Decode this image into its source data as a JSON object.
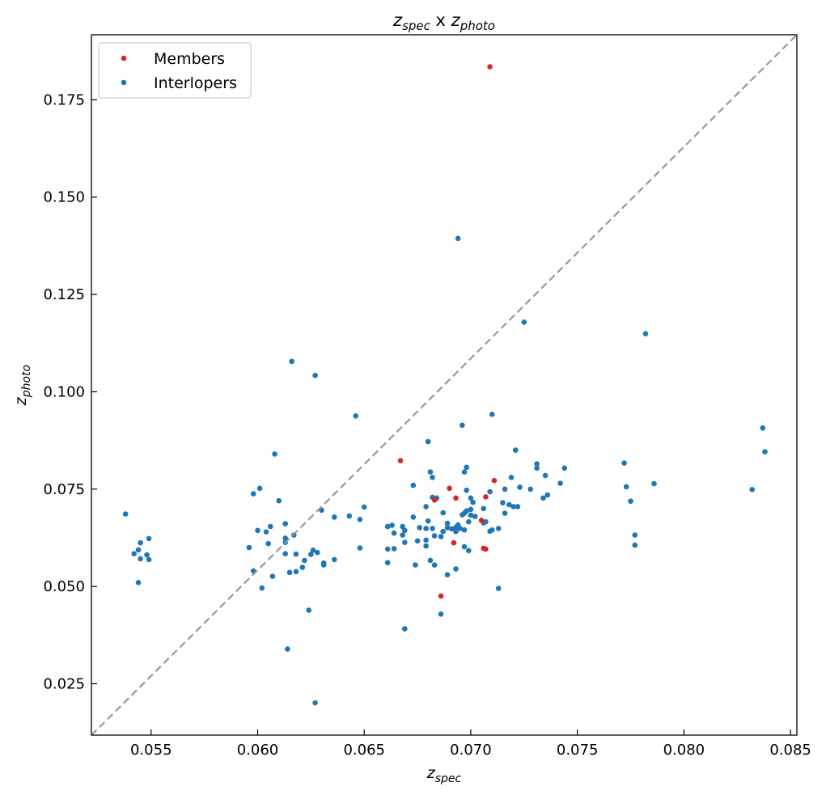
{
  "chart_data": {
    "type": "scatter",
    "title": {
      "base": "z",
      "sub1": "spec",
      "mid": " x ",
      "base2": "z",
      "sub2": "photo"
    },
    "xlabel": {
      "base": "z",
      "sub": "spec"
    },
    "ylabel": {
      "base": "z",
      "sub": "photo"
    },
    "xlim": [
      0.0522,
      0.0853
    ],
    "ylim": [
      0.0118,
      0.1917
    ],
    "xticks": [
      {
        "value": 0.055,
        "label": "0.055"
      },
      {
        "value": 0.06,
        "label": "0.060"
      },
      {
        "value": 0.065,
        "label": "0.065"
      },
      {
        "value": 0.07,
        "label": "0.070"
      },
      {
        "value": 0.075,
        "label": "0.075"
      },
      {
        "value": 0.08,
        "label": "0.080"
      },
      {
        "value": 0.085,
        "label": "0.085"
      }
    ],
    "yticks": [
      {
        "value": 0.025,
        "label": "0.025"
      },
      {
        "value": 0.05,
        "label": "0.050"
      },
      {
        "value": 0.075,
        "label": "0.075"
      },
      {
        "value": 0.1,
        "label": "0.100"
      },
      {
        "value": 0.125,
        "label": "0.125"
      },
      {
        "value": 0.15,
        "label": "0.150"
      },
      {
        "value": 0.175,
        "label": "0.175"
      }
    ],
    "reference_line": {
      "style": "dashed",
      "color": "#999999",
      "from": [
        0.0522,
        0.0118
      ],
      "to": [
        0.0853,
        0.1917
      ]
    },
    "grid": false,
    "legend": {
      "placement": "top-left",
      "entries": [
        "Members",
        "Interlopers"
      ]
    },
    "series": [
      {
        "name": "Members",
        "color": "#d62728",
        "points": [
          [
            0.0709,
            0.1835
          ],
          [
            0.0667,
            0.0823
          ],
          [
            0.0711,
            0.0772
          ],
          [
            0.069,
            0.0752
          ],
          [
            0.0683,
            0.0722
          ],
          [
            0.0693,
            0.0727
          ],
          [
            0.0707,
            0.073
          ],
          [
            0.0705,
            0.067
          ],
          [
            0.0707,
            0.0596
          ],
          [
            0.0706,
            0.0598
          ],
          [
            0.0692,
            0.0612
          ],
          [
            0.0686,
            0.0475
          ]
        ]
      },
      {
        "name": "Interlopers",
        "color": "#1f77b4",
        "points": [
          [
            0.0694,
            0.1394
          ],
          [
            0.0725,
            0.1179
          ],
          [
            0.0782,
            0.1149
          ],
          [
            0.0616,
            0.1078
          ],
          [
            0.0627,
            0.1042
          ],
          [
            0.0646,
            0.0938
          ],
          [
            0.071,
            0.0942
          ],
          [
            0.0696,
            0.0914
          ],
          [
            0.0837,
            0.0907
          ],
          [
            0.0838,
            0.0846
          ],
          [
            0.068,
            0.0872
          ],
          [
            0.0721,
            0.085
          ],
          [
            0.0608,
            0.084
          ],
          [
            0.0772,
            0.0817
          ],
          [
            0.0731,
            0.0815
          ],
          [
            0.0731,
            0.0804
          ],
          [
            0.0744,
            0.0804
          ],
          [
            0.0698,
            0.0806
          ],
          [
            0.0697,
            0.0794
          ],
          [
            0.0681,
            0.0794
          ],
          [
            0.0719,
            0.078
          ],
          [
            0.0735,
            0.0785
          ],
          [
            0.0682,
            0.078
          ],
          [
            0.0742,
            0.0765
          ],
          [
            0.0786,
            0.0764
          ],
          [
            0.0673,
            0.076
          ],
          [
            0.0716,
            0.075
          ],
          [
            0.0723,
            0.0755
          ],
          [
            0.0728,
            0.075
          ],
          [
            0.0773,
            0.0756
          ],
          [
            0.0698,
            0.0747
          ],
          [
            0.0709,
            0.0743
          ],
          [
            0.0832,
            0.0749
          ],
          [
            0.0601,
            0.0752
          ],
          [
            0.0598,
            0.0738
          ],
          [
            0.0736,
            0.0735
          ],
          [
            0.0734,
            0.0727
          ],
          [
            0.0682,
            0.0729
          ],
          [
            0.0684,
            0.0727
          ],
          [
            0.0775,
            0.0719
          ],
          [
            0.061,
            0.072
          ],
          [
            0.07,
            0.0727
          ],
          [
            0.0701,
            0.0716
          ],
          [
            0.0715,
            0.0715
          ],
          [
            0.0718,
            0.071
          ],
          [
            0.072,
            0.0705
          ],
          [
            0.0722,
            0.0705
          ],
          [
            0.0679,
            0.0705
          ],
          [
            0.065,
            0.0704
          ],
          [
            0.063,
            0.0696
          ],
          [
            0.0706,
            0.07
          ],
          [
            0.07,
            0.0698
          ],
          [
            0.0698,
            0.0694
          ],
          [
            0.0697,
            0.0688
          ],
          [
            0.0716,
            0.0688
          ],
          [
            0.0687,
            0.0689
          ],
          [
            0.0696,
            0.0684
          ],
          [
            0.07,
            0.0683
          ],
          [
            0.0702,
            0.068
          ],
          [
            0.0643,
            0.0681
          ],
          [
            0.0673,
            0.0678
          ],
          [
            0.0636,
            0.0678
          ],
          [
            0.0648,
            0.0672
          ],
          [
            0.068,
            0.0668
          ],
          [
            0.0699,
            0.0666
          ],
          [
            0.0707,
            0.0666
          ],
          [
            0.0706,
            0.0663
          ],
          [
            0.0689,
            0.0662
          ],
          [
            0.0694,
            0.0658
          ],
          [
            0.0613,
            0.0661
          ],
          [
            0.0606,
            0.0654
          ],
          [
            0.0663,
            0.0657
          ],
          [
            0.0668,
            0.0654
          ],
          [
            0.0676,
            0.0651
          ],
          [
            0.0679,
            0.0649
          ],
          [
            0.0682,
            0.0649
          ],
          [
            0.0689,
            0.0651
          ],
          [
            0.0691,
            0.0648
          ],
          [
            0.0693,
            0.0652
          ],
          [
            0.0695,
            0.0649
          ],
          [
            0.0697,
            0.0645
          ],
          [
            0.0713,
            0.0649
          ],
          [
            0.0661,
            0.0654
          ],
          [
            0.0669,
            0.0644
          ],
          [
            0.0687,
            0.0641
          ],
          [
            0.0693,
            0.0641
          ],
          [
            0.0709,
            0.0642
          ],
          [
            0.071,
            0.0645
          ],
          [
            0.06,
            0.0644
          ],
          [
            0.0604,
            0.064
          ],
          [
            0.0617,
            0.0632
          ],
          [
            0.0664,
            0.0637
          ],
          [
            0.0668,
            0.0632
          ],
          [
            0.0683,
            0.063
          ],
          [
            0.0686,
            0.0628
          ],
          [
            0.0613,
            0.0624
          ],
          [
            0.0549,
            0.0623
          ],
          [
            0.0545,
            0.0612
          ],
          [
            0.0613,
            0.0613
          ],
          [
            0.0675,
            0.0617
          ],
          [
            0.0679,
            0.0619
          ],
          [
            0.0669,
            0.0613
          ],
          [
            0.0605,
            0.061
          ],
          [
            0.0664,
            0.0597
          ],
          [
            0.0661,
            0.0596
          ],
          [
            0.0679,
            0.0604
          ],
          [
            0.0697,
            0.0602
          ],
          [
            0.0699,
            0.0592
          ],
          [
            0.0596,
            0.06
          ],
          [
            0.0626,
            0.0593
          ],
          [
            0.0628,
            0.0587
          ],
          [
            0.0625,
            0.0582
          ],
          [
            0.0544,
            0.0594
          ],
          [
            0.0542,
            0.0584
          ],
          [
            0.0548,
            0.0581
          ],
          [
            0.0545,
            0.0571
          ],
          [
            0.0549,
            0.0569
          ],
          [
            0.0613,
            0.0584
          ],
          [
            0.0618,
            0.0583
          ],
          [
            0.0648,
            0.0599
          ],
          [
            0.0636,
            0.0569
          ],
          [
            0.0622,
            0.0567
          ],
          [
            0.0631,
            0.056
          ],
          [
            0.0631,
            0.0555
          ],
          [
            0.0661,
            0.0561
          ],
          [
            0.0674,
            0.0555
          ],
          [
            0.0681,
            0.0567
          ],
          [
            0.0683,
            0.0555
          ],
          [
            0.0621,
            0.0549
          ],
          [
            0.0618,
            0.0538
          ],
          [
            0.0615,
            0.0536
          ],
          [
            0.0598,
            0.054
          ],
          [
            0.0607,
            0.0526
          ],
          [
            0.0689,
            0.053
          ],
          [
            0.0693,
            0.0545
          ],
          [
            0.0544,
            0.051
          ],
          [
            0.0602,
            0.0496
          ],
          [
            0.0713,
            0.0495
          ],
          [
            0.0538,
            0.0686
          ],
          [
            0.0686,
            0.0429
          ],
          [
            0.0624,
            0.0439
          ],
          [
            0.0669,
            0.0391
          ],
          [
            0.0614,
            0.0339
          ],
          [
            0.0627,
            0.0201
          ],
          [
            0.0777,
            0.0632
          ],
          [
            0.0777,
            0.0606
          ]
        ]
      }
    ]
  }
}
